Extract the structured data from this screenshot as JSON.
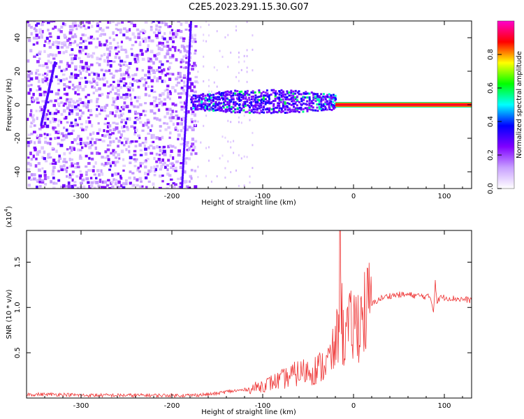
{
  "figure_title": "C2E5.2023.291.15.30.G07",
  "chart_data": [
    {
      "type": "heatmap",
      "title": "",
      "xlabel": "Height of straight line (km)",
      "ylabel": "Frequency (Hz)",
      "xlim": [
        -360,
        130
      ],
      "ylim": [
        -50,
        50
      ],
      "x_ticks": [
        -300,
        -200,
        -100,
        0,
        100
      ],
      "x_tick_labels": [
        "-300",
        "-200",
        "-100",
        "0",
        "100"
      ],
      "y_ticks": [
        -40,
        -20,
        0,
        20,
        40
      ],
      "y_tick_labels": [
        "-40",
        "-20",
        "0",
        "20",
        "40"
      ],
      "colorbar": {
        "label": "Normalized spectral amplitude",
        "range": [
          0,
          1
        ],
        "ticks": [
          0.0,
          0.2,
          0.4,
          0.6,
          0.8
        ],
        "tick_labels": [
          "0.0",
          "0.2",
          "0.4",
          "0.6",
          "0.8"
        ],
        "colormap": [
          "#ffffff",
          "#c8a0ff",
          "#8000ff",
          "#0000ff",
          "#00ffff",
          "#00ff00",
          "#ffff00",
          "#ff0000",
          "#ff00cc"
        ]
      },
      "features": {
        "noise_region_x": [
          -360,
          -175
        ],
        "echo_region_x": [
          -180,
          -20
        ],
        "echo_frequency_band": [
          -5,
          8
        ],
        "carrier_line_x": [
          -20,
          130
        ],
        "carrier_frequency": 0,
        "drifting_streak_1": {
          "x": [
            -345,
            -330
          ],
          "freq": [
            -12,
            25
          ]
        },
        "drifting_streak_2": {
          "x": [
            -190,
            -180
          ],
          "freq": [
            -50,
            50
          ]
        }
      },
      "grid": false
    },
    {
      "type": "line",
      "title": "",
      "xlabel": "Height of straight line (km)",
      "ylabel": "SNR (10 * v/v)",
      "y_scale_label": "(x10",
      "y_scale_exponent": "4",
      "y_scale_close": ")",
      "xlim": [
        -360,
        130
      ],
      "ylim": [
        0,
        1.85
      ],
      "x_ticks": [
        -300,
        -200,
        -100,
        0,
        100
      ],
      "x_tick_labels": [
        "-300",
        "-200",
        "-100",
        "0",
        "100"
      ],
      "y_ticks": [
        0.5,
        1.0,
        1.5
      ],
      "y_tick_labels": [
        "0.5",
        "1.0",
        "1.5"
      ],
      "series": [
        {
          "color": "#ee3333",
          "x": [
            -360,
            -340,
            -320,
            -300,
            -280,
            -260,
            -240,
            -220,
            -200,
            -180,
            -160,
            -150,
            -140,
            -130,
            -120,
            -110,
            -100,
            -90,
            -80,
            -70,
            -60,
            -50,
            -40,
            -30,
            -25,
            -20,
            -17,
            -15,
            -12,
            -10,
            -5,
            0,
            5,
            10,
            15,
            20,
            25,
            30,
            40,
            50,
            60,
            70,
            80,
            85,
            88,
            90,
            92,
            95,
            100,
            110,
            120,
            130
          ],
          "y": [
            0.04,
            0.04,
            0.04,
            0.03,
            0.03,
            0.03,
            0.03,
            0.03,
            0.03,
            0.03,
            0.04,
            0.05,
            0.07,
            0.08,
            0.09,
            0.11,
            0.14,
            0.17,
            0.2,
            0.24,
            0.28,
            0.3,
            0.32,
            0.38,
            0.45,
            0.55,
            0.75,
            1.85,
            0.65,
            0.7,
            0.75,
            0.8,
            0.85,
            0.92,
            0.98,
            1.03,
            1.07,
            1.1,
            1.13,
            1.14,
            1.14,
            1.13,
            1.12,
            1.11,
            0.95,
            1.3,
            1.05,
            1.11,
            1.11,
            1.1,
            1.09,
            1.08
          ]
        }
      ],
      "grid": false
    }
  ]
}
